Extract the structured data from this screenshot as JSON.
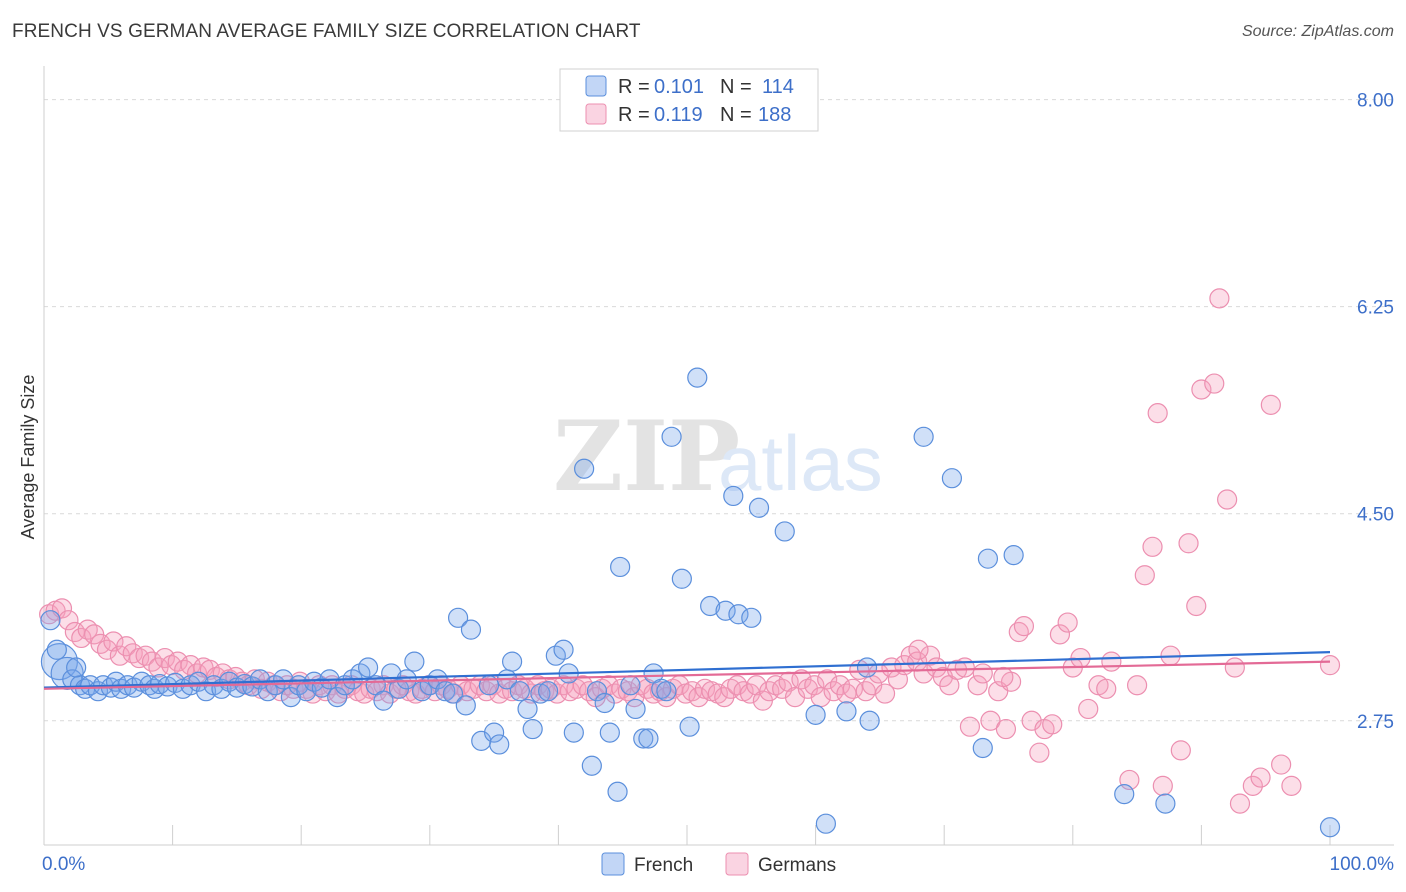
{
  "title": "FRENCH VS GERMAN AVERAGE FAMILY SIZE CORRELATION CHART",
  "source": "Source: ZipAtlas.com",
  "watermark": {
    "zip": "ZIP",
    "atlas": "atlas"
  },
  "colors": {
    "french_fill": "rgba(120,165,235,0.35)",
    "french_stroke": "#5b8fdc",
    "french_line": "#2f6fd1",
    "german_fill": "rgba(245,160,190,0.35)",
    "german_stroke": "#ec8fb0",
    "german_line": "#e36a96",
    "tick_label": "#3d6fc9",
    "grid": "#d9d9d9"
  },
  "legend": {
    "rows": [
      {
        "r_label": "R = ",
        "r_value": "0.101",
        "n_label": "N = ",
        "n_value": "114"
      },
      {
        "r_label": "R = ",
        "r_value": "0.119",
        "n_label": "N = ",
        "n_value": "188"
      }
    ]
  },
  "bottom_legend": [
    "French",
    "Germans"
  ],
  "chart_data": {
    "type": "scatter",
    "xlabel": "",
    "ylabel": "Average Family Size",
    "x_tick_labels": [
      "0.0%",
      "100.0%"
    ],
    "xlim": [
      0,
      100
    ],
    "ylim": [
      1.7,
      8.25
    ],
    "y_ticks": [
      2.75,
      4.5,
      6.25,
      8.0
    ],
    "y_tick_labels": [
      "2.75",
      "4.50",
      "6.25",
      "8.00"
    ],
    "grid": "horizontal dashed",
    "legend_placement": "top-center",
    "series": [
      {
        "name": "French",
        "trend": {
          "x": [
            0,
            100
          ],
          "y": [
            3.03,
            3.33
          ]
        },
        "points": [
          [
            0.5,
            3.6
          ],
          [
            1.2,
            3.25
          ],
          [
            1.8,
            3.15
          ],
          [
            2.2,
            3.1
          ],
          [
            2.8,
            3.05
          ],
          [
            3.2,
            3.02
          ],
          [
            3.6,
            3.05
          ],
          [
            4.2,
            3.0
          ],
          [
            4.6,
            3.05
          ],
          [
            5.2,
            3.03
          ],
          [
            5.6,
            3.08
          ],
          [
            6.0,
            3.02
          ],
          [
            6.5,
            3.05
          ],
          [
            7.0,
            3.03
          ],
          [
            7.6,
            3.08
          ],
          [
            8.2,
            3.05
          ],
          [
            8.6,
            3.02
          ],
          [
            9.0,
            3.06
          ],
          [
            9.6,
            3.04
          ],
          [
            10.2,
            3.07
          ],
          [
            10.8,
            3.02
          ],
          [
            11.4,
            3.05
          ],
          [
            12.0,
            3.08
          ],
          [
            12.6,
            3.0
          ],
          [
            13.2,
            3.05
          ],
          [
            13.8,
            3.02
          ],
          [
            14.4,
            3.08
          ],
          [
            15.0,
            3.03
          ],
          [
            15.6,
            3.06
          ],
          [
            16.2,
            3.04
          ],
          [
            16.8,
            3.1
          ],
          [
            17.4,
            3.0
          ],
          [
            18.0,
            3.05
          ],
          [
            18.6,
            3.1
          ],
          [
            19.2,
            2.95
          ],
          [
            19.8,
            3.05
          ],
          [
            20.4,
            3.0
          ],
          [
            21.0,
            3.08
          ],
          [
            21.6,
            3.03
          ],
          [
            22.2,
            3.1
          ],
          [
            22.8,
            2.95
          ],
          [
            23.4,
            3.05
          ],
          [
            24.0,
            3.1
          ],
          [
            24.6,
            3.15
          ],
          [
            25.2,
            3.2
          ],
          [
            25.8,
            3.05
          ],
          [
            26.4,
            2.92
          ],
          [
            27.0,
            3.15
          ],
          [
            27.6,
            3.02
          ],
          [
            28.2,
            3.1
          ],
          [
            28.8,
            3.25
          ],
          [
            29.4,
            3.0
          ],
          [
            30.0,
            3.05
          ],
          [
            30.6,
            3.1
          ],
          [
            31.2,
            3.0
          ],
          [
            31.8,
            2.98
          ],
          [
            32.2,
            3.62
          ],
          [
            32.8,
            2.88
          ],
          [
            33.2,
            3.52
          ],
          [
            34.0,
            2.58
          ],
          [
            34.6,
            3.05
          ],
          [
            35.0,
            2.65
          ],
          [
            35.4,
            2.55
          ],
          [
            36.0,
            3.1
          ],
          [
            36.4,
            3.25
          ],
          [
            37.0,
            3.0
          ],
          [
            37.6,
            2.85
          ],
          [
            38.0,
            2.68
          ],
          [
            38.6,
            2.98
          ],
          [
            39.2,
            3.0
          ],
          [
            39.8,
            3.3
          ],
          [
            40.4,
            3.35
          ],
          [
            40.8,
            3.15
          ],
          [
            41.2,
            2.65
          ],
          [
            42.0,
            4.88
          ],
          [
            42.6,
            2.37
          ],
          [
            43.0,
            3.0
          ],
          [
            43.6,
            2.9
          ],
          [
            44.0,
            2.65
          ],
          [
            44.6,
            2.15
          ],
          [
            44.8,
            4.05
          ],
          [
            45.6,
            3.05
          ],
          [
            46.0,
            2.85
          ],
          [
            46.6,
            2.6
          ],
          [
            47.0,
            2.6
          ],
          [
            47.4,
            3.15
          ],
          [
            48.0,
            3.02
          ],
          [
            48.4,
            3.0
          ],
          [
            48.8,
            5.15
          ],
          [
            49.6,
            3.95
          ],
          [
            50.2,
            2.7
          ],
          [
            50.8,
            5.65
          ],
          [
            51.8,
            3.72
          ],
          [
            53.0,
            3.68
          ],
          [
            53.6,
            4.65
          ],
          [
            54.0,
            3.65
          ],
          [
            55.0,
            3.62
          ],
          [
            55.6,
            4.55
          ],
          [
            57.6,
            4.35
          ],
          [
            60.0,
            2.8
          ],
          [
            60.8,
            1.88
          ],
          [
            62.4,
            2.83
          ],
          [
            64.0,
            3.2
          ],
          [
            64.2,
            2.75
          ],
          [
            68.4,
            5.15
          ],
          [
            70.6,
            4.8
          ],
          [
            73.0,
            2.52
          ],
          [
            73.4,
            4.12
          ],
          [
            75.4,
            4.15
          ],
          [
            84.0,
            2.13
          ],
          [
            87.2,
            2.05
          ],
          [
            100.0,
            1.85
          ],
          [
            1.0,
            3.35
          ],
          [
            2.5,
            3.2
          ]
        ]
      },
      {
        "name": "Germans",
        "trend": {
          "x": [
            0,
            100
          ],
          "y": [
            3.02,
            3.25
          ]
        },
        "points": [
          [
            0.4,
            3.65
          ],
          [
            0.9,
            3.68
          ],
          [
            1.4,
            3.7
          ],
          [
            1.9,
            3.6
          ],
          [
            2.4,
            3.5
          ],
          [
            2.9,
            3.45
          ],
          [
            3.4,
            3.52
          ],
          [
            3.9,
            3.48
          ],
          [
            4.4,
            3.4
          ],
          [
            4.9,
            3.35
          ],
          [
            5.4,
            3.42
          ],
          [
            5.9,
            3.3
          ],
          [
            6.4,
            3.38
          ],
          [
            6.9,
            3.32
          ],
          [
            7.4,
            3.28
          ],
          [
            7.9,
            3.3
          ],
          [
            8.4,
            3.25
          ],
          [
            8.9,
            3.2
          ],
          [
            9.4,
            3.28
          ],
          [
            9.9,
            3.22
          ],
          [
            10.4,
            3.25
          ],
          [
            10.9,
            3.18
          ],
          [
            11.4,
            3.22
          ],
          [
            11.9,
            3.15
          ],
          [
            12.4,
            3.2
          ],
          [
            12.9,
            3.18
          ],
          [
            13.4,
            3.12
          ],
          [
            13.9,
            3.15
          ],
          [
            14.4,
            3.1
          ],
          [
            14.9,
            3.12
          ],
          [
            15.4,
            3.08
          ],
          [
            15.9,
            3.05
          ],
          [
            16.4,
            3.1
          ],
          [
            16.9,
            3.02
          ],
          [
            17.4,
            3.08
          ],
          [
            17.9,
            3.05
          ],
          [
            18.4,
            3.0
          ],
          [
            18.9,
            3.05
          ],
          [
            19.4,
            3.02
          ],
          [
            19.9,
            3.08
          ],
          [
            20.4,
            3.02
          ],
          [
            20.9,
            2.98
          ],
          [
            21.4,
            3.05
          ],
          [
            21.9,
            3.0
          ],
          [
            22.4,
            3.05
          ],
          [
            22.9,
            2.98
          ],
          [
            23.4,
            3.02
          ],
          [
            23.9,
            3.05
          ],
          [
            24.4,
            3.0
          ],
          [
            24.9,
            2.98
          ],
          [
            25.4,
            3.02
          ],
          [
            25.9,
            3.0
          ],
          [
            26.4,
            3.05
          ],
          [
            26.9,
            2.98
          ],
          [
            27.4,
            3.02
          ],
          [
            27.9,
            3.05
          ],
          [
            28.4,
            3.0
          ],
          [
            28.9,
            2.98
          ],
          [
            29.4,
            3.02
          ],
          [
            29.9,
            3.05
          ],
          [
            30.4,
            3.0
          ],
          [
            30.9,
            3.05
          ],
          [
            31.4,
            3.02
          ],
          [
            31.9,
            2.98
          ],
          [
            32.4,
            3.05
          ],
          [
            32.9,
            3.0
          ],
          [
            33.4,
            3.02
          ],
          [
            33.9,
            3.05
          ],
          [
            34.4,
            3.0
          ],
          [
            34.9,
            3.05
          ],
          [
            35.4,
            2.98
          ],
          [
            35.9,
            3.02
          ],
          [
            36.4,
            3.0
          ],
          [
            36.9,
            3.05
          ],
          [
            37.4,
            3.02
          ],
          [
            37.9,
            2.98
          ],
          [
            38.4,
            3.05
          ],
          [
            38.9,
            3.0
          ],
          [
            39.4,
            3.02
          ],
          [
            39.9,
            2.98
          ],
          [
            40.4,
            3.05
          ],
          [
            40.9,
            3.0
          ],
          [
            41.4,
            3.02
          ],
          [
            41.9,
            3.05
          ],
          [
            42.4,
            3.0
          ],
          [
            42.9,
            2.95
          ],
          [
            43.4,
            3.02
          ],
          [
            43.9,
            3.05
          ],
          [
            44.4,
            2.98
          ],
          [
            44.9,
            3.02
          ],
          [
            45.4,
            3.0
          ],
          [
            45.9,
            2.95
          ],
          [
            46.4,
            3.05
          ],
          [
            46.9,
            3.02
          ],
          [
            47.4,
            2.98
          ],
          [
            47.9,
            3.0
          ],
          [
            48.4,
            2.95
          ],
          [
            48.9,
            3.02
          ],
          [
            49.4,
            3.05
          ],
          [
            49.9,
            2.98
          ],
          [
            50.4,
            3.0
          ],
          [
            50.9,
            2.95
          ],
          [
            51.4,
            3.02
          ],
          [
            51.9,
            3.0
          ],
          [
            52.4,
            2.98
          ],
          [
            52.9,
            2.95
          ],
          [
            53.4,
            3.02
          ],
          [
            53.9,
            3.05
          ],
          [
            54.4,
            3.0
          ],
          [
            54.9,
            2.98
          ],
          [
            55.4,
            3.05
          ],
          [
            55.9,
            2.92
          ],
          [
            56.4,
            3.0
          ],
          [
            56.9,
            3.05
          ],
          [
            57.4,
            3.02
          ],
          [
            57.9,
            3.08
          ],
          [
            58.4,
            2.95
          ],
          [
            58.9,
            3.1
          ],
          [
            59.4,
            3.02
          ],
          [
            59.9,
            3.05
          ],
          [
            60.4,
            2.95
          ],
          [
            60.9,
            3.1
          ],
          [
            61.4,
            3.0
          ],
          [
            61.9,
            3.05
          ],
          [
            62.4,
            2.98
          ],
          [
            62.9,
            3.02
          ],
          [
            63.4,
            3.18
          ],
          [
            63.9,
            3.0
          ],
          [
            64.4,
            3.05
          ],
          [
            64.9,
            3.15
          ],
          [
            65.4,
            2.98
          ],
          [
            65.9,
            3.2
          ],
          [
            66.4,
            3.1
          ],
          [
            66.9,
            3.22
          ],
          [
            67.4,
            3.3
          ],
          [
            67.9,
            3.25
          ],
          [
            68.4,
            3.15
          ],
          [
            68.9,
            3.3
          ],
          [
            69.4,
            3.2
          ],
          [
            69.9,
            3.12
          ],
          [
            70.4,
            3.05
          ],
          [
            71.0,
            3.18
          ],
          [
            71.6,
            3.2
          ],
          [
            72.0,
            2.7
          ],
          [
            72.6,
            3.05
          ],
          [
            73.0,
            3.15
          ],
          [
            73.6,
            2.75
          ],
          [
            74.2,
            3.0
          ],
          [
            74.8,
            2.68
          ],
          [
            75.2,
            3.08
          ],
          [
            75.8,
            3.5
          ],
          [
            76.2,
            3.55
          ],
          [
            76.8,
            2.75
          ],
          [
            77.4,
            2.48
          ],
          [
            77.8,
            2.68
          ],
          [
            78.4,
            2.72
          ],
          [
            79.0,
            3.48
          ],
          [
            79.6,
            3.58
          ],
          [
            80.0,
            3.2
          ],
          [
            80.6,
            3.28
          ],
          [
            81.2,
            2.85
          ],
          [
            82.0,
            3.05
          ],
          [
            82.6,
            3.02
          ],
          [
            83.0,
            3.25
          ],
          [
            84.4,
            2.25
          ],
          [
            85.0,
            3.05
          ],
          [
            85.6,
            3.98
          ],
          [
            86.2,
            4.22
          ],
          [
            86.6,
            5.35
          ],
          [
            87.0,
            2.2
          ],
          [
            87.6,
            3.3
          ],
          [
            88.4,
            2.5
          ],
          [
            89.0,
            4.25
          ],
          [
            89.6,
            3.72
          ],
          [
            90.0,
            5.55
          ],
          [
            91.0,
            5.6
          ],
          [
            91.4,
            6.32
          ],
          [
            92.0,
            4.62
          ],
          [
            92.6,
            3.2
          ],
          [
            93.0,
            2.05
          ],
          [
            94.0,
            2.2
          ],
          [
            94.6,
            2.27
          ],
          [
            95.4,
            5.42
          ],
          [
            96.2,
            2.38
          ],
          [
            97.0,
            2.2
          ],
          [
            100.0,
            3.22
          ],
          [
            74.6,
            3.12
          ],
          [
            68.0,
            3.35
          ]
        ]
      }
    ]
  }
}
